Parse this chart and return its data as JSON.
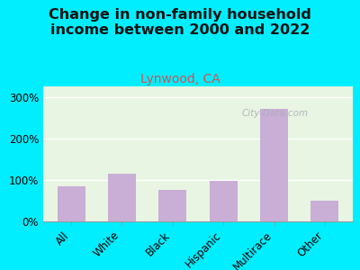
{
  "title": "Change in non-family household\nincome between 2000 and 2022",
  "subtitle": "Lynwood, CA",
  "categories": [
    "All",
    "White",
    "Black",
    "Hispanic",
    "Multirace",
    "Other"
  ],
  "values": [
    85,
    115,
    75,
    97,
    270,
    50
  ],
  "bar_color": "#c9aed6",
  "background_outer": "#00eeff",
  "background_plot": "#e8f5e2",
  "title_fontsize": 11.5,
  "subtitle_fontsize": 10,
  "subtitle_color": "#cc5555",
  "title_color": "#111111",
  "ylim": [
    0,
    325
  ],
  "yticks": [
    0,
    100,
    200,
    300
  ],
  "watermark": "City-Data.com",
  "watermark_color": "#aaaabb",
  "tick_fontsize": 8.5
}
